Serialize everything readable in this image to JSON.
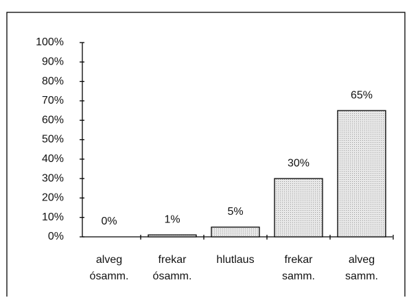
{
  "chart_data": {
    "type": "bar",
    "categories": [
      [
        "alveg",
        "ósamm."
      ],
      [
        "frekar",
        "ósamm."
      ],
      [
        "hlutlaus"
      ],
      [
        "frekar",
        "samm."
      ],
      [
        "alveg",
        "samm."
      ]
    ],
    "values": [
      0,
      1,
      5,
      30,
      65
    ],
    "value_labels": [
      "0%",
      "1%",
      "5%",
      "30%",
      "65%"
    ],
    "color": "#dcdcdc",
    "ylim": [
      0,
      100
    ],
    "yticks": [
      {
        "value": 0,
        "label": "0%"
      },
      {
        "value": 10,
        "label": "10%"
      },
      {
        "value": 20,
        "label": "20%"
      },
      {
        "value": 30,
        "label": "30%"
      },
      {
        "value": 40,
        "label": "40%"
      },
      {
        "value": 50,
        "label": "50%"
      },
      {
        "value": 60,
        "label": "60%"
      },
      {
        "value": 70,
        "label": "70%"
      },
      {
        "value": 80,
        "label": "80%"
      },
      {
        "value": 90,
        "label": "90%"
      },
      {
        "value": 100,
        "label": "100%"
      }
    ],
    "grid": false
  }
}
